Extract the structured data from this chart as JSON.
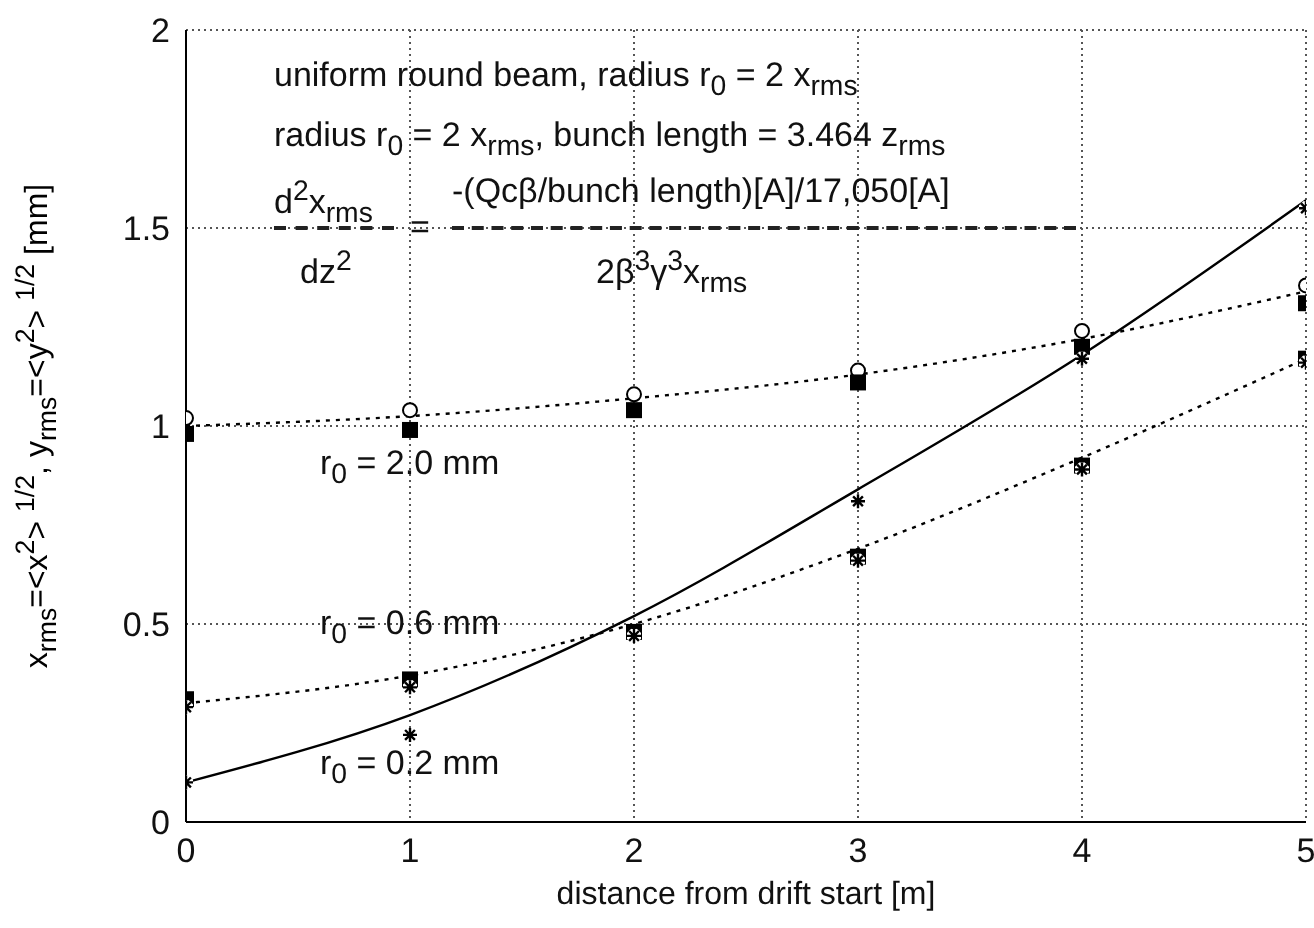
{
  "chart_data": {
    "type": "line",
    "xlabel": "distance from drift start [m]",
    "ylabel": "x$_{rms}$=<x$^{2}$> $^{1/2}$, y$_{rms}$=<y$^{2}$> $^{1/2}$ [mm]",
    "x": [
      0,
      1,
      2,
      3,
      4,
      5
    ],
    "series": [
      {
        "color": "#000000",
        "line_style": "dotted",
        "marker": "none",
        "values": [
          1.0,
          1.025,
          1.07,
          1.13,
          1.22,
          1.34
        ]
      },
      {
        "type": "scatter",
        "color": "#000000",
        "marker": "circle",
        "values": [
          1.02,
          1.04,
          1.08,
          1.14,
          1.24,
          1.355
        ]
      },
      {
        "type": "scatter",
        "color": "#000000",
        "marker": "square",
        "values": [
          0.98,
          0.99,
          1.04,
          1.11,
          1.2,
          1.31
        ]
      },
      {
        "color": "#000000",
        "line_style": "dotted",
        "marker": "none",
        "values": [
          0.3,
          0.37,
          0.5,
          0.69,
          0.92,
          1.17
        ]
      },
      {
        "type": "scatter",
        "color": "#000000",
        "marker": "square",
        "values": [
          0.31,
          0.36,
          0.48,
          0.67,
          0.9,
          1.17
        ]
      },
      {
        "type": "scatter",
        "color": "#000000",
        "marker": "cross",
        "values": [
          0.29,
          0.34,
          0.47,
          0.66,
          0.89,
          1.16
        ]
      },
      {
        "color": "#000000",
        "line_style": "solid",
        "marker": "none",
        "values": [
          0.1,
          0.27,
          0.52,
          0.84,
          1.18,
          1.57
        ]
      },
      {
        "type": "scatter",
        "color": "#000000",
        "marker": "cross",
        "values": [
          0.1,
          0.22,
          null,
          0.81,
          1.17,
          1.55
        ]
      }
    ],
    "xlim": [
      0,
      5
    ],
    "xticks": [
      0,
      1,
      2,
      3,
      4,
      5
    ],
    "ylim": [
      0,
      2
    ],
    "yticks": [
      0,
      0.5,
      1,
      1.5,
      2
    ],
    "grid": true,
    "annotations": [
      "uniform round beam, radius r$_{0}$ = 2 x$_{rms}$",
      "radius r$_{0}$ = 2 x$_{rms}$, bunch length = 3.464 z$_{rms}$",
      "d$^{2}$x$_{rms}$",
      "=",
      "-(Qcβ/bunch length)[A]/17,050[A]",
      "dz$^{2}$",
      "2β$^{3}$γ$^{3}$x$_{rms}$",
      "r$_{0}$ = 2.0 mm",
      "r$_{0}$ = 0.6 mm",
      "r$_{0}$ = 0.2 mm"
    ]
  }
}
